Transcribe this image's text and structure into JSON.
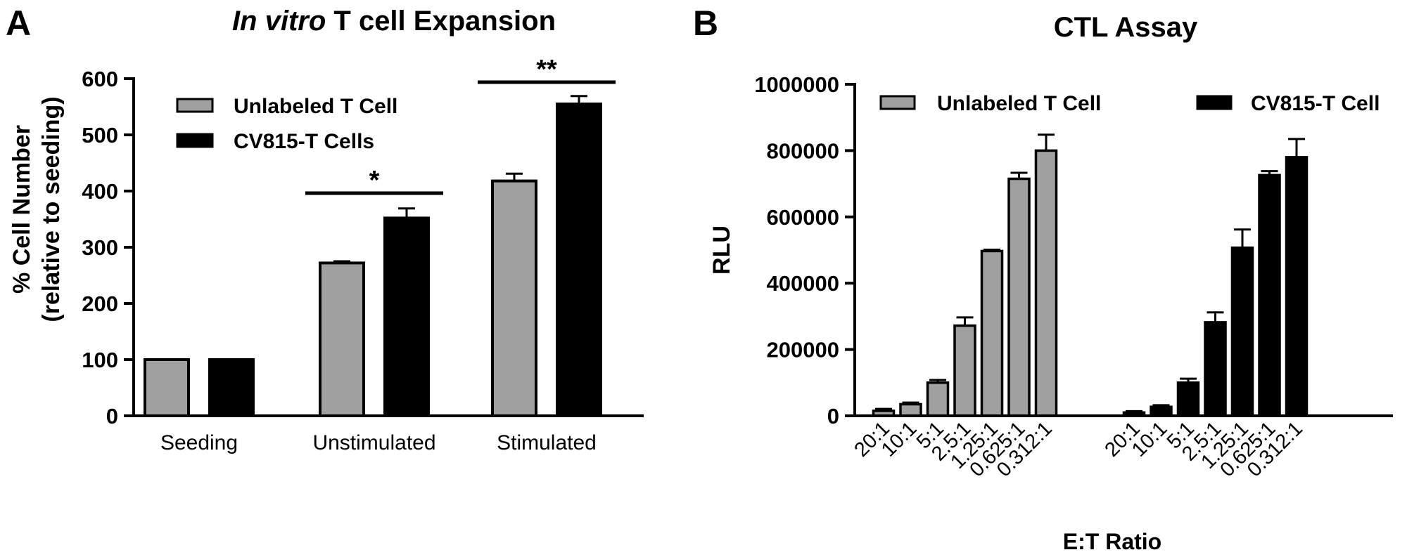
{
  "panel_letters": {
    "a": "A",
    "b": "B"
  },
  "chart_data": [
    {
      "type": "bar",
      "title_italic": "In vitro",
      "title_rest": " T cell Expansion",
      "ylabel_line1": "% Cell Number",
      "ylabel_line2": "(relative to seeding)",
      "xlabel": "",
      "ylim": [
        0,
        600
      ],
      "yticks": [
        "0",
        "100",
        "200",
        "300",
        "400",
        "500",
        "600"
      ],
      "categories": [
        "Seeding",
        "Unstimulated",
        "Stimulated"
      ],
      "series": [
        {
          "name": "Unlabeled T Cell",
          "color": "#a0a0a0",
          "values": [
            100,
            272,
            418
          ],
          "errors": [
            0,
            3,
            13
          ]
        },
        {
          "name": "CV815-T Cells",
          "color": "#000000",
          "values": [
            100,
            352,
            555
          ],
          "errors": [
            0,
            17,
            14
          ]
        }
      ],
      "significance": [
        {
          "category_index": 1,
          "label": "*",
          "y": 395
        },
        {
          "category_index": 2,
          "label": "**",
          "y": 592
        }
      ],
      "legend_position": "top-left",
      "grid": false
    },
    {
      "type": "bar",
      "title": "CTL Assay",
      "ylabel": "RLU",
      "xlabel": "E:T Ratio",
      "ylim": [
        0,
        1000000
      ],
      "yticks": [
        "0",
        "200000",
        "400000",
        "600000",
        "800000",
        "1000000"
      ],
      "groups": [
        {
          "name": "Unlabeled T Cell",
          "color": "#a0a0a0",
          "categories": [
            "20:1",
            "10:1",
            "5:1",
            "2.5:1",
            "1.25:1",
            "0.625:1",
            "0.312:1"
          ],
          "values": [
            15000,
            35000,
            100000,
            272000,
            497000,
            715000,
            800000
          ],
          "errors": [
            6000,
            5000,
            8000,
            25000,
            4000,
            18000,
            48000
          ]
        },
        {
          "name": "CV815-T Cell",
          "color": "#000000",
          "categories": [
            "20:1",
            "10:1",
            "5:1",
            "2.5:1",
            "1.25:1",
            "0.625:1",
            "0.312:1"
          ],
          "values": [
            10000,
            27000,
            100000,
            282000,
            507000,
            726000,
            780000
          ],
          "errors": [
            4000,
            5000,
            12000,
            30000,
            55000,
            12000,
            55000
          ]
        }
      ],
      "legend_position": "top",
      "grid": false
    }
  ]
}
